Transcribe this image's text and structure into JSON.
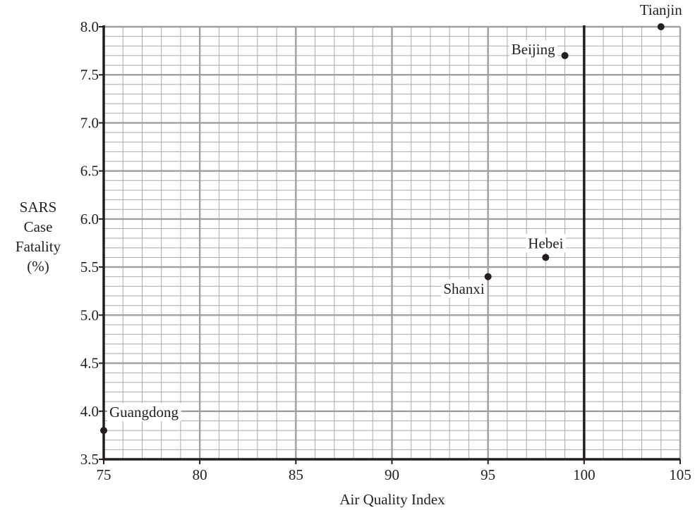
{
  "chart_data": {
    "type": "scatter",
    "xlabel": "Air Quality Index",
    "ylabel": [
      "SARS",
      "Case",
      "Fatality",
      "(%)"
    ],
    "xlim": [
      75,
      105
    ],
    "ylim": [
      3.5,
      8.0
    ],
    "x_ticks": [
      75,
      80,
      85,
      90,
      95,
      100,
      105
    ],
    "y_ticks": [
      "3.5",
      "4.0",
      "4.5",
      "5.0",
      "5.5",
      "6.0",
      "6.5",
      "7.0",
      "7.5",
      "8.0"
    ],
    "x_minor_step": 1,
    "y_minor_step": 0.1,
    "reference_line_x": 100,
    "grid": true,
    "points": [
      {
        "label": "Tianjin",
        "x": 104,
        "y": 8.0
      },
      {
        "label": "Beijing",
        "x": 99,
        "y": 7.7
      },
      {
        "label": "Hebei",
        "x": 98,
        "y": 5.6
      },
      {
        "label": "Shanxi",
        "x": 95,
        "y": 5.4
      },
      {
        "label": "Guangdong",
        "x": 75,
        "y": 3.8
      }
    ],
    "colors": {
      "minor_grid": "#a7a9ac",
      "major_grid": "#9d9fa2",
      "axis": "#231f20",
      "point": "#231f20"
    }
  }
}
